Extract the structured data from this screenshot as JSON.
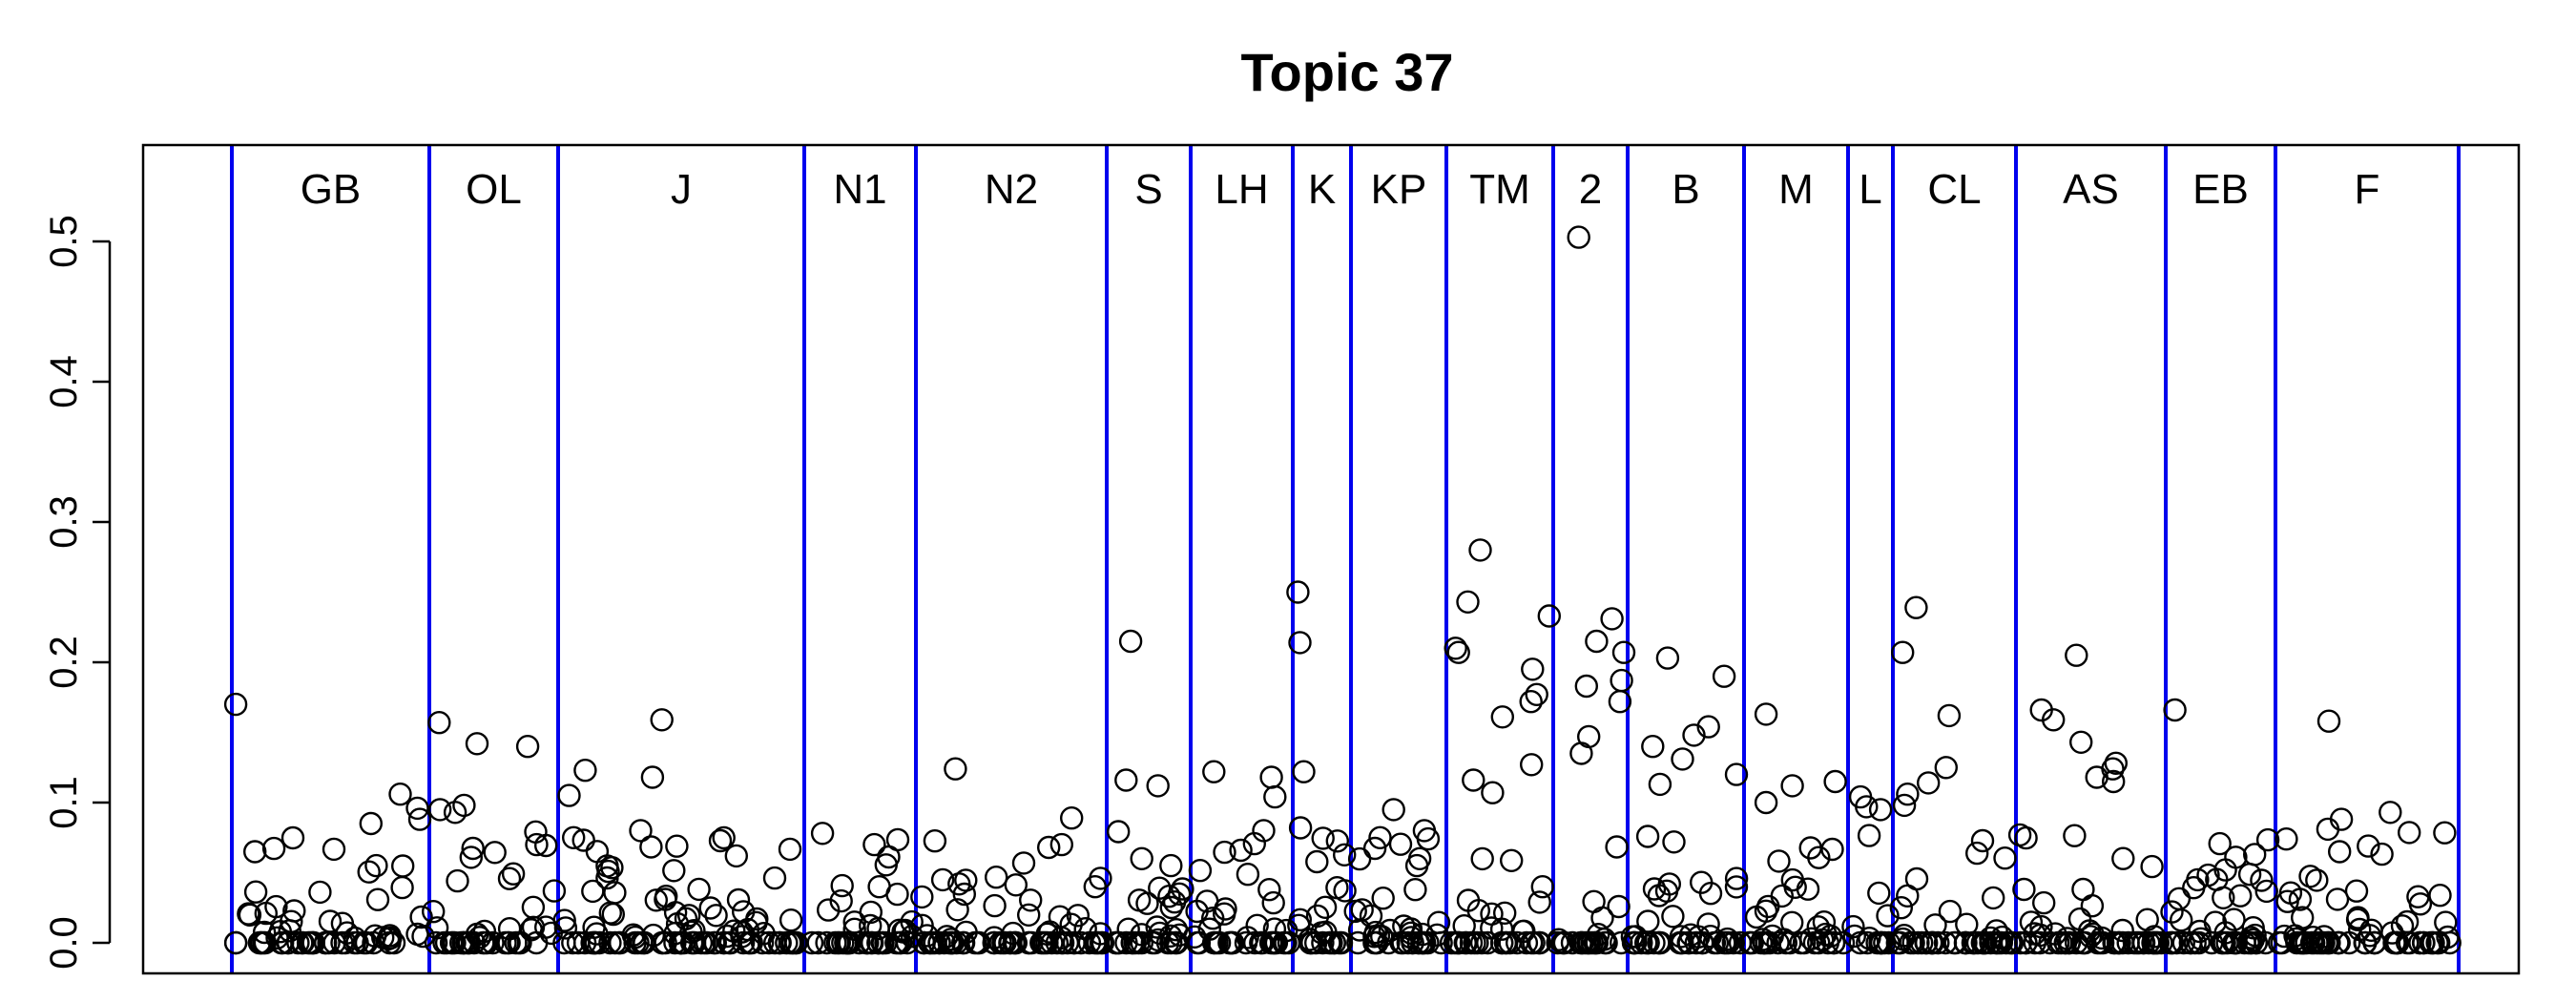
{
  "chart_data": {
    "type": "scatter",
    "title": "Topic 37",
    "xlabel": "",
    "ylabel": "",
    "ylim": [
      0.0,
      0.5
    ],
    "yticks": [
      "0.0",
      "0.1",
      "0.2",
      "0.3",
      "0.4",
      "0.5"
    ],
    "grid": false,
    "colors": {
      "points": "#000000",
      "separators": "#0000ee",
      "frame": "#000000"
    },
    "segments": [
      {
        "label": "GB",
        "n": 70,
        "highlights": [
          0.17,
          0.106,
          0.096,
          0.088,
          0.085,
          0.065,
          0.055
        ]
      },
      {
        "label": "OL",
        "n": 52,
        "highlights": [
          0.157,
          0.142,
          0.14,
          0.098,
          0.095,
          0.093,
          0.07
        ]
      },
      {
        "label": "J",
        "n": 110,
        "highlights": [
          0.159,
          0.123,
          0.118,
          0.105,
          0.08,
          0.075,
          0.062
        ]
      },
      {
        "label": "N1",
        "n": 50,
        "highlights": [
          0.078,
          0.07,
          0.04
        ]
      },
      {
        "label": "N2",
        "n": 85,
        "highlights": [
          0.124,
          0.089,
          0.07,
          0.068,
          0.045,
          0.04
        ]
      },
      {
        "label": "S",
        "n": 38,
        "highlights": [
          0.215,
          0.116,
          0.112,
          0.06,
          0.055
        ]
      },
      {
        "label": "LH",
        "n": 45,
        "highlights": [
          0.122,
          0.118,
          0.104,
          0.08,
          0.066
        ]
      },
      {
        "label": "K",
        "n": 28,
        "highlights": [
          0.25,
          0.214,
          0.122,
          0.082
        ]
      },
      {
        "label": "KP",
        "n": 45,
        "highlights": [
          0.095,
          0.08,
          0.075,
          0.06,
          0.055
        ]
      },
      {
        "label": "TM",
        "n": 48,
        "highlights": [
          0.28,
          0.243,
          0.233,
          0.21,
          0.207,
          0.195,
          0.177,
          0.172,
          0.161,
          0.127,
          0.116,
          0.107
        ]
      },
      {
        "label": "2",
        "n": 35,
        "highlights": [
          0.503,
          0.231,
          0.215,
          0.207,
          0.187,
          0.183,
          0.172,
          0.147,
          0.135
        ]
      },
      {
        "label": "B",
        "n": 55,
        "highlights": [
          0.203,
          0.19,
          0.154,
          0.148,
          0.14,
          0.131,
          0.12,
          0.113
        ]
      },
      {
        "label": "M",
        "n": 45,
        "highlights": [
          0.163,
          0.115,
          0.112,
          0.1
        ]
      },
      {
        "label": "L",
        "n": 18,
        "highlights": [
          0.104,
          0.097,
          0.095
        ]
      },
      {
        "label": "CL",
        "n": 60,
        "highlights": [
          0.239,
          0.207,
          0.162,
          0.125,
          0.114,
          0.106,
          0.098
        ]
      },
      {
        "label": "AS",
        "n": 70,
        "highlights": [
          0.205,
          0.166,
          0.159,
          0.143,
          0.128,
          0.124,
          0.118,
          0.115
        ]
      },
      {
        "label": "EB",
        "n": 52,
        "highlights": [
          0.166,
          0.063,
          0.061,
          0.045
        ]
      },
      {
        "label": "F",
        "n": 80,
        "highlights": [
          0.158,
          0.093,
          0.088,
          0.081,
          0.074,
          0.069,
          0.065
        ]
      }
    ]
  }
}
